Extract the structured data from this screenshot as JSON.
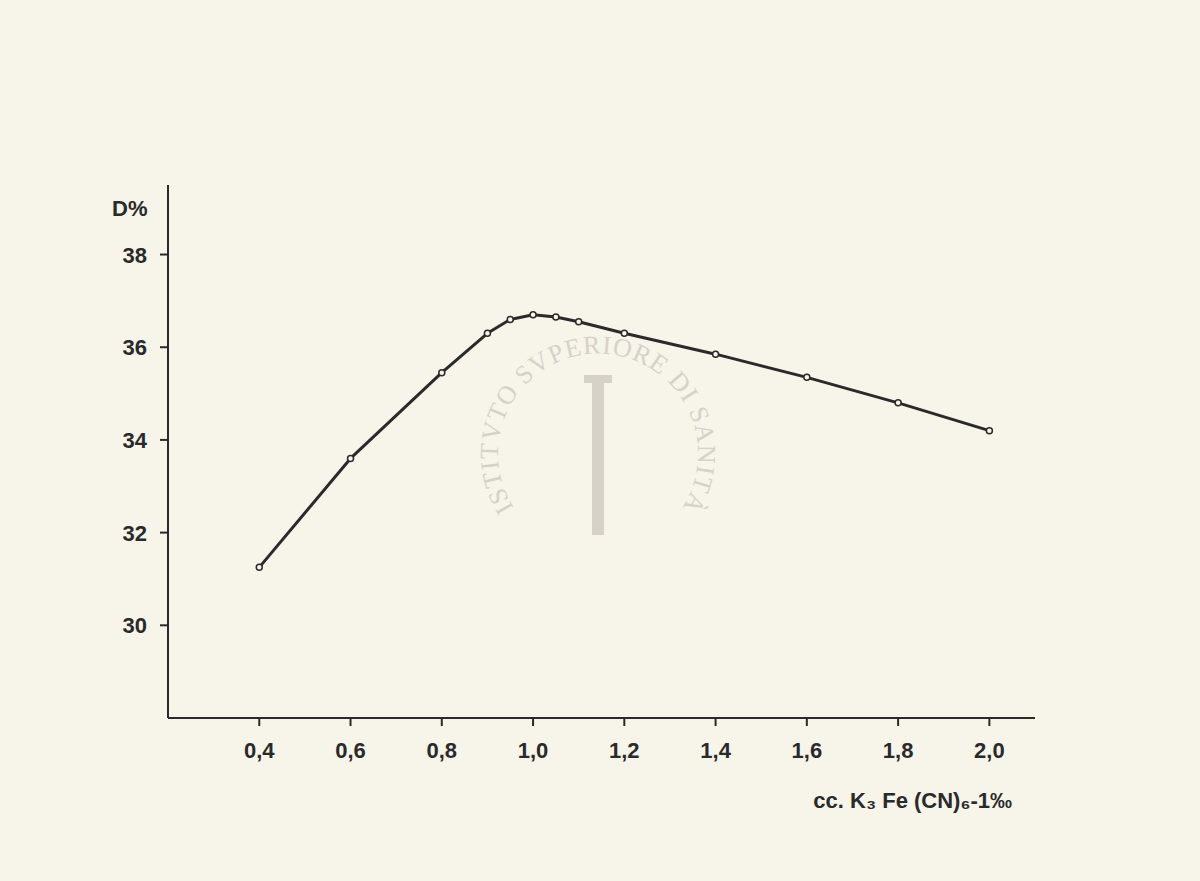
{
  "chart_data": {
    "type": "line",
    "ylabel": "D%",
    "xlabel": "cc. K₃ Fe (CN)₆-1‰",
    "annotations": [
      "ISTITVTO SVPERIORE DI SANITÀ"
    ],
    "x": [
      0.4,
      0.6,
      0.8,
      0.9,
      0.95,
      1.0,
      1.05,
      1.1,
      1.2,
      1.4,
      1.6,
      1.8,
      2.0
    ],
    "values": [
      31.25,
      33.6,
      35.45,
      36.3,
      36.6,
      36.7,
      36.65,
      36.55,
      36.3,
      35.85,
      35.35,
      34.8,
      34.2
    ],
    "color": "#2a2a2a",
    "marker": "circle",
    "line_style": "solid",
    "grid": false,
    "xlim": [
      0.2,
      2.1
    ],
    "xticks": [
      {
        "value": 0.4,
        "label": "0,4"
      },
      {
        "value": 0.6,
        "label": "0,6"
      },
      {
        "value": 0.8,
        "label": "0,8"
      },
      {
        "value": 1.0,
        "label": "1,0"
      },
      {
        "value": 1.2,
        "label": "1,2"
      },
      {
        "value": 1.4,
        "label": "1,4"
      },
      {
        "value": 1.6,
        "label": "1,6"
      },
      {
        "value": 1.8,
        "label": "1,8"
      },
      {
        "value": 2.0,
        "label": "2,0"
      }
    ],
    "ylim": [
      28,
      39.5
    ],
    "yticks": [
      30,
      32,
      34,
      36,
      38
    ]
  }
}
